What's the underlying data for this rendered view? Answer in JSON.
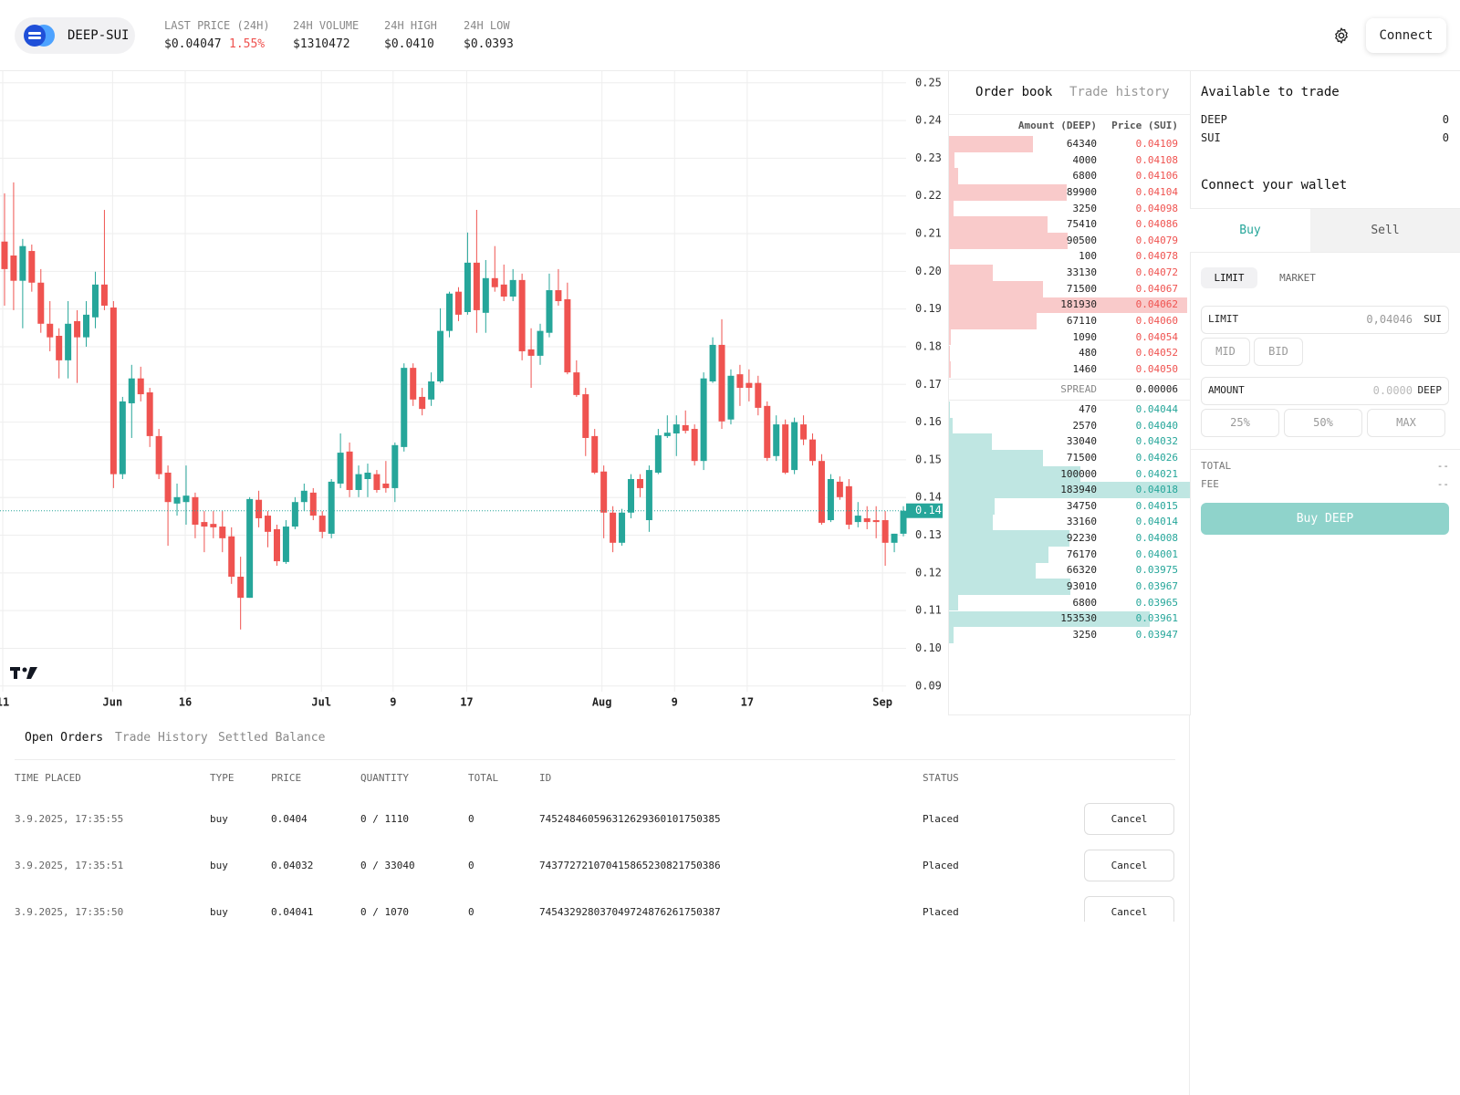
{
  "header": {
    "pair": "DEEP-SUI",
    "stats": [
      {
        "label": "LAST PRICE (24H)",
        "value": "$0.04047",
        "change": "1.55%"
      },
      {
        "label": "24H VOLUME",
        "value": "$1310472"
      },
      {
        "label": "24H HIGH",
        "value": "$0.0410"
      },
      {
        "label": "24H LOW",
        "value": "$0.0393"
      }
    ],
    "connect": "Connect"
  },
  "chart_data": {
    "type": "candlestick",
    "open": [
      0.2079,
      0.2042,
      0.1975,
      0.2054,
      0.197,
      0.1861,
      0.1829,
      0.1764,
      0.1868,
      0.1825,
      0.1878,
      0.1965,
      0.1904,
      0.1462,
      0.165,
      0.1716,
      0.1679,
      0.1563,
      0.1466,
      0.1384,
      0.1388,
      0.1401,
      0.1335,
      0.133,
      0.1323,
      0.1297,
      0.119,
      0.1134,
      0.1394,
      0.1352,
      0.1316,
      0.1229,
      0.1323,
      0.1388,
      0.1413,
      0.1352,
      0.1304,
      0.1437,
      0.1522,
      0.142,
      0.1449,
      0.1462,
      0.1437,
      0.1425,
      0.1534,
      0.1744,
      0.1667,
      0.166,
      0.1708,
      0.1842,
      0.1946,
      0.1892,
      0.2023,
      0.189,
      0.1982,
      0.1965,
      0.1933,
      0.1977,
      0.1793,
      0.1776,
      0.1837,
      0.195,
      0.1926,
      0.1732,
      0.1674,
      0.1563,
      0.1469,
      0.136,
      0.128,
      0.136,
      0.1449,
      0.134,
      0.1466,
      0.1563,
      0.157,
      0.1592,
      0.1582,
      0.1497,
      0.1708,
      0.1805,
      0.1607,
      0.1727,
      0.1704,
      0.1704,
      0.1643,
      0.151,
      0.1594,
      0.1473,
      0.1594,
      0.1554,
      0.1497,
      0.134,
      0.1442,
      0.143,
      0.1335,
      0.1345,
      0.134,
      0.134,
      0.128,
      0.1304
    ],
    "high": [
      0.2207,
      0.2236,
      0.2086,
      0.2071,
      0.2006,
      0.1921,
      0.1849,
      0.1921,
      0.1897,
      0.1921,
      0.1999,
      0.2163,
      0.1921,
      0.1667,
      0.1752,
      0.1747,
      0.1691,
      0.1582,
      0.1485,
      0.1437,
      0.1485,
      0.1413,
      0.1364,
      0.1364,
      0.1364,
      0.1321,
      0.1243,
      0.1401,
      0.1418,
      0.1364,
      0.1328,
      0.134,
      0.1401,
      0.1437,
      0.1425,
      0.1364,
      0.1449,
      0.157,
      0.1546,
      0.1485,
      0.149,
      0.1473,
      0.1497,
      0.1546,
      0.1756,
      0.1756,
      0.1691,
      0.1732,
      0.1902,
      0.1946,
      0.1958,
      0.2103,
      0.2163,
      0.203,
      0.2067,
      0.2018,
      0.2006,
      0.1994,
      0.1849,
      0.1861,
      0.1994,
      0.2006,
      0.197,
      0.1764,
      0.1691,
      0.1582,
      0.1485,
      0.1377,
      0.137,
      0.1462,
      0.1462,
      0.1485,
      0.1582,
      0.1618,
      0.1618,
      0.1631,
      0.1594,
      0.1732,
      0.1825,
      0.1873,
      0.174,
      0.1752,
      0.174,
      0.1723,
      0.1655,
      0.1618,
      0.1607,
      0.1612,
      0.1618,
      0.157,
      0.1515,
      0.1462,
      0.1456,
      0.1449,
      0.1388,
      0.1377,
      0.1377,
      0.1364,
      0.1304,
      0.1377
    ],
    "low": [
      0.1909,
      0.1897,
      0.1849,
      0.1946,
      0.1837,
      0.1788,
      0.1716,
      0.1716,
      0.1704,
      0.18,
      0.1849,
      0.1897,
      0.1425,
      0.1449,
      0.1558,
      0.1655,
      0.1534,
      0.1449,
      0.1272,
      0.1352,
      0.1328,
      0.1292,
      0.1255,
      0.1292,
      0.1255,
      0.1171,
      0.105,
      0.1134,
      0.1321,
      0.1268,
      0.1219,
      0.1224,
      0.1316,
      0.1364,
      0.134,
      0.1292,
      0.1292,
      0.1425,
      0.1401,
      0.1401,
      0.1401,
      0.1413,
      0.1413,
      0.1388,
      0.1522,
      0.1643,
      0.1618,
      0.1643,
      0.1704,
      0.1825,
      0.1868,
      0.1885,
      0.1837,
      0.1837,
      0.1946,
      0.1921,
      0.1921,
      0.1764,
      0.1691,
      0.1752,
      0.1825,
      0.1909,
      0.1727,
      0.1667,
      0.151,
      0.1462,
      0.1292,
      0.1255,
      0.1272,
      0.1345,
      0.1401,
      0.1309,
      0.1462,
      0.1558,
      0.151,
      0.157,
      0.1485,
      0.1473,
      0.1704,
      0.1582,
      0.1594,
      0.1643,
      0.1655,
      0.1618,
      0.1497,
      0.1497,
      0.1462,
      0.1462,
      0.1539,
      0.1485,
      0.1328,
      0.1335,
      0.1394,
      0.1316,
      0.1321,
      0.1316,
      0.1292,
      0.1219,
      0.1255,
      0.1297
    ],
    "close": [
      0.2006,
      0.1975,
      0.2067,
      0.197,
      0.1861,
      0.1825,
      0.1764,
      0.1861,
      0.1825,
      0.1885,
      0.1965,
      0.1909,
      0.1462,
      0.1655,
      0.1716,
      0.1674,
      0.1563,
      0.1462,
      0.1388,
      0.1401,
      0.1405,
      0.1328,
      0.1323,
      0.1321,
      0.1292,
      0.119,
      0.1134,
      0.1396,
      0.1345,
      0.1309,
      0.1231,
      0.1323,
      0.1388,
      0.1418,
      0.1352,
      0.1309,
      0.1442,
      0.1519,
      0.142,
      0.1462,
      0.1466,
      0.142,
      0.1425,
      0.1539,
      0.1744,
      0.166,
      0.1635,
      0.1708,
      0.1842,
      0.1941,
      0.1885,
      0.2023,
      0.1897,
      0.1982,
      0.1958,
      0.1933,
      0.1977,
      0.1788,
      0.1776,
      0.1842,
      0.195,
      0.1921,
      0.1732,
      0.1672,
      0.1558,
      0.1466,
      0.136,
      0.128,
      0.136,
      0.1449,
      0.1425,
      0.1473,
      0.1565,
      0.1572,
      0.1594,
      0.1577,
      0.1497,
      0.1716,
      0.1805,
      0.1602,
      0.1723,
      0.1691,
      0.1691,
      0.1638,
      0.1505,
      0.1594,
      0.1466,
      0.16,
      0.1554,
      0.1497,
      0.1333,
      0.1449,
      0.1401,
      0.1328,
      0.1352,
      0.1335,
      0.1335,
      0.128,
      0.1304,
      0.1365
    ],
    "up_color": "#26a69a",
    "down_color": "#ef5350",
    "ylim": [
      0.0885,
      0.2531
    ],
    "yticks": [
      0.25,
      0.24,
      0.23,
      0.22,
      0.21,
      {
        "value": 0.2,
        "label": "0.20"
      },
      0.19,
      0.18,
      0.17,
      0.16,
      0.15,
      0.14,
      0.13,
      0.12,
      0.11,
      {
        "value": 0.1,
        "label": "0.10"
      },
      0.09
    ],
    "xlim": [
      -0.5,
      99.3
    ],
    "xticks": [
      {
        "value": -0.2,
        "label": "11"
      },
      {
        "value": 11.9,
        "label": "Jun"
      },
      {
        "value": 19.9,
        "label": "16"
      },
      {
        "value": 34.9,
        "label": "Jul"
      },
      {
        "value": 42.8,
        "label": "9"
      },
      {
        "value": 50.9,
        "label": "17"
      },
      {
        "value": 65.8,
        "label": "Aug"
      },
      {
        "value": 73.8,
        "label": "9"
      },
      {
        "value": 81.8,
        "label": "17"
      },
      {
        "value": 96.7,
        "label": "Sep"
      }
    ],
    "last_price": {
      "value": 0.1365,
      "label": "0.14"
    },
    "grid": true
  },
  "order_book": {
    "tabs": [
      "Order book",
      "Trade history"
    ],
    "columns": [
      "Amount (DEEP)",
      "Price (SUI)"
    ],
    "asks": {
      "amounts": [
        64340,
        4000,
        6800,
        89900,
        3250,
        75410,
        90500,
        100,
        33130,
        71500,
        181930,
        67110,
        1090,
        480,
        1460
      ],
      "prices": [
        "0.04109",
        "0.04108",
        "0.04106",
        "0.04104",
        "0.04098",
        "0.04086",
        "0.04079",
        "0.04078",
        "0.04072",
        "0.04067",
        "0.04062",
        "0.04060",
        "0.04054",
        "0.04052",
        "0.04050"
      ]
    },
    "spread_label": "SPREAD",
    "spread": "0.00006",
    "bids": {
      "amounts": [
        470,
        2570,
        33040,
        71500,
        100000,
        183940,
        34750,
        33160,
        92230,
        76170,
        66320,
        93010,
        6800,
        153530,
        3250
      ],
      "prices": [
        "0.04044",
        "0.04040",
        "0.04032",
        "0.04026",
        "0.04021",
        "0.04018",
        "0.04015",
        "0.04014",
        "0.04008",
        "0.04001",
        "0.03975",
        "0.03967",
        "0.03965",
        "0.03961",
        "0.03947"
      ]
    },
    "ask_color": "#f9caca",
    "bid_color": "#bfe6e2",
    "ask_text": "#ef5350",
    "bid_text": "#26a69a"
  },
  "sidebar": {
    "available_title": "Available to trade",
    "balances": [
      {
        "asset": "DEEP",
        "amount": "0"
      },
      {
        "asset": "SUI",
        "amount": "0"
      }
    ],
    "wallet": "Connect your wallet",
    "sides": [
      "Buy",
      "Sell"
    ],
    "order_types": [
      "LIMIT",
      "MARKET"
    ],
    "limit": {
      "label": "LIMIT",
      "placeholder": "0,04046",
      "unit": "SUI"
    },
    "price_buttons": [
      "MID",
      "BID"
    ],
    "amount": {
      "label": "AMOUNT",
      "placeholder": "0.0000",
      "unit": "DEEP"
    },
    "fractions": [
      "25%",
      "50%",
      "MAX"
    ],
    "summary": [
      {
        "label": "TOTAL",
        "value": "--"
      },
      {
        "label": "FEE",
        "value": "--"
      }
    ],
    "submit": "Buy DEEP"
  },
  "orders": {
    "tabs": [
      "Open Orders",
      "Trade History",
      "Settled Balance"
    ],
    "columns": [
      "TIME PLACED",
      "TYPE",
      "PRICE",
      "QUANTITY",
      "TOTAL",
      "ID",
      "STATUS"
    ],
    "rows": [
      [
        "3.9.2025, 17:35:55",
        "buy",
        "0.0404",
        "0 / 1110",
        "0",
        "745248460596312629360101750385",
        "Placed"
      ],
      [
        "3.9.2025, 17:35:51",
        "buy",
        "0.04032",
        "0 / 33040",
        "0",
        "743772721070415865230821750386",
        "Placed"
      ],
      [
        "3.9.2025, 17:35:50",
        "buy",
        "0.04041",
        "0 / 1070",
        "0",
        "745432928037049724876261750387",
        "Placed"
      ]
    ],
    "action": "Cancel"
  }
}
